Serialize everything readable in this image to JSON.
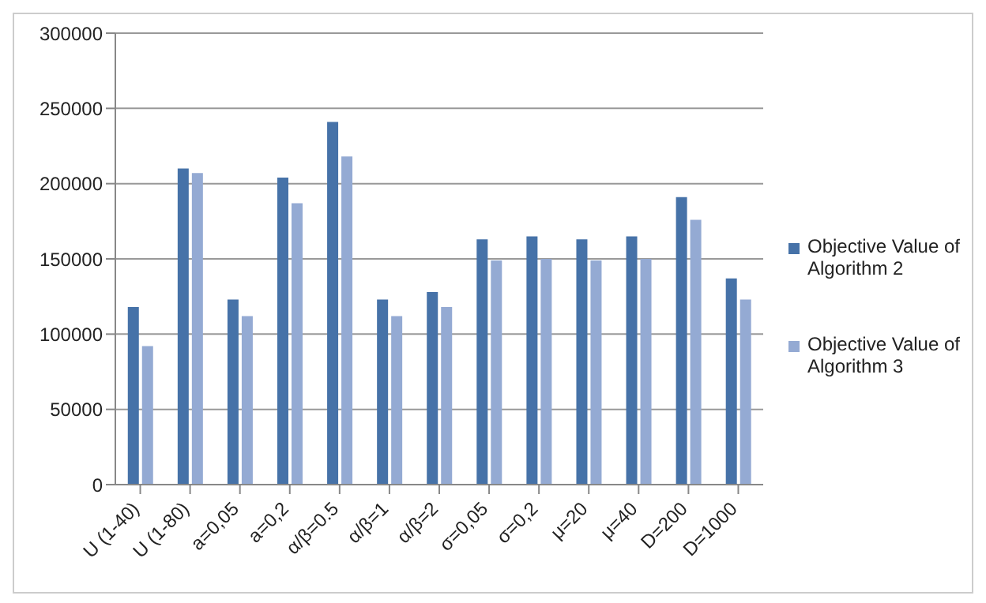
{
  "chart_data": {
    "type": "bar",
    "categories": [
      "U (1-40)",
      "U (1-80)",
      "a=0,05",
      "a=0,2",
      "α/β=0.5",
      "α/β=1",
      "α/β=2",
      "σ=0,05",
      "σ=0,2",
      "μ=20",
      "μ=40",
      "D=200",
      "D=1000"
    ],
    "series": [
      {
        "name": "Objective Value of Algorithm 2",
        "color": "#4672a8",
        "values": [
          118000,
          210000,
          123000,
          204000,
          241000,
          123000,
          128000,
          163000,
          165000,
          163000,
          165000,
          191000,
          137000
        ]
      },
      {
        "name": "Objective Value of Algorithm 3",
        "color": "#94aad3",
        "values": [
          92000,
          207000,
          112000,
          187000,
          218000,
          112000,
          118000,
          149000,
          150000,
          149000,
          150000,
          176000,
          123000
        ]
      }
    ],
    "ylim": [
      0,
      300000
    ],
    "yticks": [
      0,
      50000,
      100000,
      150000,
      200000,
      250000,
      300000
    ],
    "grid": "y",
    "legend": "right"
  }
}
